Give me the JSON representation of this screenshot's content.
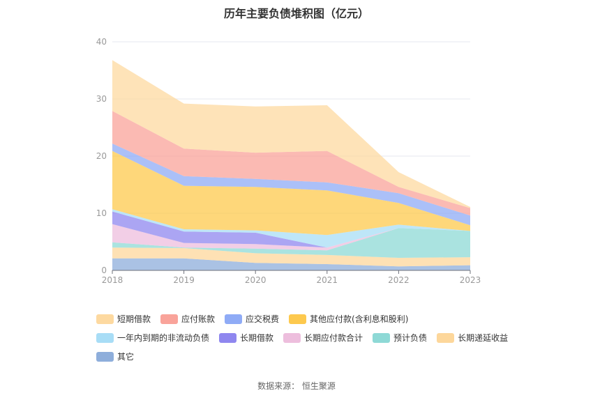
{
  "title": "历年主要负债堆积图（亿元）",
  "source": "数据来源：  恒生聚源",
  "chart_data": {
    "type": "area",
    "stacked": true,
    "x": [
      "2018",
      "2019",
      "2020",
      "2021",
      "2022",
      "2023"
    ],
    "ylim": [
      0,
      40
    ],
    "yticks": [
      0,
      10,
      20,
      30,
      40
    ],
    "grid": true,
    "legend_position": "bottom",
    "series": [
      {
        "name": "其它",
        "color": "#8EAEDB",
        "values": [
          2.1,
          2.1,
          1.3,
          1.1,
          0.7,
          0.9
        ]
      },
      {
        "name": "长期递延收益",
        "color": "#FDD79B",
        "values": [
          1.9,
          1.8,
          1.7,
          1.6,
          1.5,
          1.4
        ]
      },
      {
        "name": "预计负债",
        "color": "#8ED9D6",
        "values": [
          0.9,
          0.1,
          0.8,
          0.8,
          5.2,
          4.6
        ]
      },
      {
        "name": "长期应付款合计",
        "color": "#EDBEDD",
        "values": [
          3.2,
          0.8,
          0.8,
          0.5,
          0.0,
          0.0
        ]
      },
      {
        "name": "长期借款",
        "color": "#8F87EF",
        "values": [
          2.2,
          2.0,
          2.0,
          0.0,
          0.0,
          0.0
        ]
      },
      {
        "name": "一年内到期的非流动负债",
        "color": "#A8DDF6",
        "values": [
          0.4,
          0.4,
          0.4,
          2.2,
          0.6,
          0.0
        ]
      },
      {
        "name": "其他应付款(含利息和股利)",
        "color": "#FDC94E",
        "values": [
          10.2,
          7.6,
          7.6,
          7.8,
          3.8,
          1.0
        ]
      },
      {
        "name": "应交税费",
        "color": "#8FABF6",
        "values": [
          1.3,
          1.7,
          1.4,
          1.4,
          1.7,
          1.7
        ]
      },
      {
        "name": "应付账款",
        "color": "#F9A39A",
        "values": [
          5.7,
          4.8,
          4.6,
          5.5,
          1.1,
          1.3
        ]
      },
      {
        "name": "短期借款",
        "color": "#FDD9A0",
        "values": [
          8.9,
          7.9,
          8.1,
          8.0,
          2.6,
          0.2
        ]
      }
    ],
    "legend_order": [
      "短期借款",
      "应付账款",
      "应交税费",
      "其他应付款(含利息和股利)",
      "一年内到期的非流动负债",
      "长期借款",
      "长期应付款合计",
      "预计负债",
      "长期递延收益",
      "其它"
    ]
  }
}
